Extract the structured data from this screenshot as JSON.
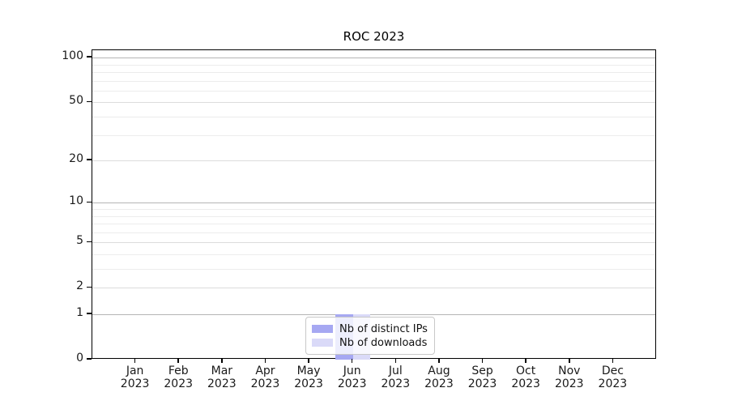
{
  "chart_data": {
    "type": "bar",
    "title": "ROC 2023",
    "categories": [
      "Jan 2023",
      "Feb 2023",
      "Mar 2023",
      "Apr 2023",
      "May 2023",
      "Jun 2023",
      "Jul 2023",
      "Aug 2023",
      "Sep 2023",
      "Oct 2023",
      "Nov 2023",
      "Dec 2023"
    ],
    "x_tick_labels": [
      {
        "month": "Jan",
        "year": "2023"
      },
      {
        "month": "Feb",
        "year": "2023"
      },
      {
        "month": "Mar",
        "year": "2023"
      },
      {
        "month": "Apr",
        "year": "2023"
      },
      {
        "month": "May",
        "year": "2023"
      },
      {
        "month": "Jun",
        "year": "2023"
      },
      {
        "month": "Jul",
        "year": "2023"
      },
      {
        "month": "Aug",
        "year": "2023"
      },
      {
        "month": "Sep",
        "year": "2023"
      },
      {
        "month": "Oct",
        "year": "2023"
      },
      {
        "month": "Nov",
        "year": "2023"
      },
      {
        "month": "Dec",
        "year": "2023"
      }
    ],
    "series": [
      {
        "name": "Nb of distinct IPs",
        "color": "#a6a8f2",
        "values": [
          0,
          0,
          0,
          0,
          0,
          1,
          0,
          0,
          0,
          0,
          0,
          0
        ]
      },
      {
        "name": "Nb of downloads",
        "color": "#dadaf8",
        "values": [
          0,
          0,
          0,
          0,
          0,
          1,
          0,
          0,
          0,
          0,
          0,
          0
        ]
      }
    ],
    "y_axis": {
      "scale": "log1p",
      "range": [
        0,
        100
      ],
      "labeled_ticks": [
        100,
        50,
        20,
        10,
        5,
        2,
        1,
        0
      ],
      "decade_gridlines": [
        1,
        10,
        100
      ],
      "mid_gridlines": [
        2,
        5,
        20,
        50
      ],
      "minor_gridlines": [
        3,
        4,
        6,
        7,
        8,
        9,
        30,
        40,
        60,
        70,
        80,
        90
      ]
    },
    "legend": {
      "entries": [
        "Nb of distinct IPs",
        "Nb of downloads"
      ]
    },
    "grid": "horizontal-only",
    "legend_position": "lower-center"
  }
}
